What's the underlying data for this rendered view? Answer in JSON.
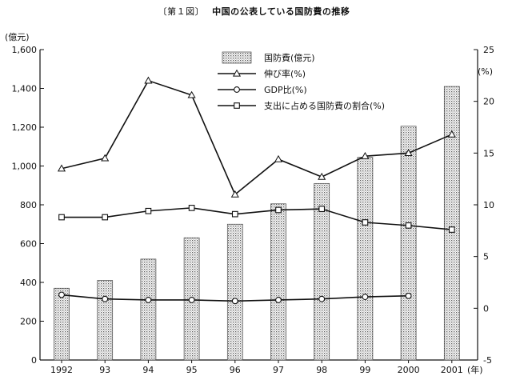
{
  "figure": {
    "number": "〔第１図〕",
    "title": "中国の公表している国防費の推移"
  },
  "chart_data": {
    "type": "bar",
    "title": "中国の公表している国防費の推移",
    "categories": [
      "1992",
      "93",
      "94",
      "95",
      "96",
      "97",
      "98",
      "99",
      "2000",
      "2001"
    ],
    "x_unit": "(年)",
    "y_left": {
      "label": "(億元)",
      "range": [
        0,
        1600
      ],
      "ticks": [
        "0",
        "200",
        "400",
        "600",
        "800",
        "1,000",
        "1,200",
        "1,400",
        "1,600"
      ]
    },
    "y_right": {
      "label": "(%)",
      "range": [
        -5,
        25
      ],
      "ticks": [
        "-5",
        "0",
        "5",
        "10",
        "15",
        "20",
        "25"
      ]
    },
    "grid": false,
    "legend_position": "top-center",
    "series": [
      {
        "name": "国防費(億元)",
        "type": "bar",
        "axis": "left",
        "marker": "none",
        "values": [
          370,
          410,
          520,
          630,
          700,
          805,
          910,
          1045,
          1205,
          1410
        ]
      },
      {
        "name": "伸び率(%)",
        "type": "line",
        "axis": "right",
        "marker": "triangle",
        "values": [
          13.5,
          14.5,
          22.0,
          20.6,
          11.0,
          14.4,
          12.7,
          14.7,
          15.0,
          16.8
        ]
      },
      {
        "name": "GDP比(%)",
        "type": "line",
        "axis": "right",
        "marker": "circle",
        "values": [
          1.3,
          0.9,
          0.8,
          0.8,
          0.7,
          0.8,
          0.9,
          1.1,
          1.2,
          null
        ]
      },
      {
        "name": "支出に占める国防費の割合(%)",
        "type": "line",
        "axis": "right",
        "marker": "square",
        "values": [
          8.8,
          8.8,
          9.4,
          9.7,
          9.1,
          9.5,
          9.6,
          8.3,
          8.0,
          7.6
        ]
      }
    ]
  }
}
